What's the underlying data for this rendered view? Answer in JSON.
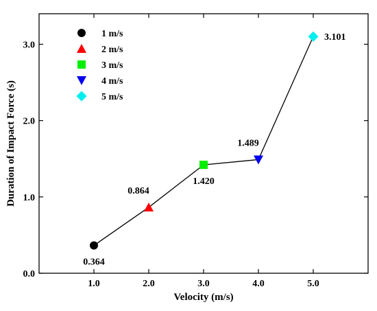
{
  "chart_data": {
    "type": "scatter",
    "connected": true,
    "xlabel": "Velocity (m/s)",
    "ylabel": "Duration of Impact Force (s)",
    "xlim": [
      0.0,
      6.0
    ],
    "ylim": [
      0.0,
      3.4
    ],
    "xticks": [
      "1.0",
      "2.0",
      "3.0",
      "4.0",
      "5.0"
    ],
    "yticks": [
      "0.0",
      "1.0",
      "2.0",
      "3.0"
    ],
    "xtick_values": [
      1,
      2,
      3,
      4,
      5
    ],
    "ytick_values": [
      0,
      1,
      2,
      3
    ],
    "grid": false,
    "legend_position": "top-left",
    "line_color": "#000000",
    "series": [
      {
        "name": "1 m/s",
        "x": 1.0,
        "y": 0.364,
        "label": "0.364",
        "marker": "circle",
        "color": "#000000",
        "label_pos": "below"
      },
      {
        "name": "2 m/s",
        "x": 2.0,
        "y": 0.864,
        "label": "0.864",
        "marker": "triangle-up",
        "color": "#ff0000",
        "label_pos": "above-left"
      },
      {
        "name": "3 m/s",
        "x": 3.0,
        "y": 1.42,
        "label": "1.420",
        "marker": "square",
        "color": "#00ee00",
        "label_pos": "below"
      },
      {
        "name": "4 m/s",
        "x": 4.0,
        "y": 1.489,
        "label": "1.489",
        "marker": "triangle-down",
        "color": "#0000ee",
        "label_pos": "above-left"
      },
      {
        "name": "5 m/s",
        "x": 5.0,
        "y": 3.101,
        "label": "3.101",
        "marker": "diamond",
        "color": "#00eeee",
        "label_pos": "right"
      }
    ]
  }
}
